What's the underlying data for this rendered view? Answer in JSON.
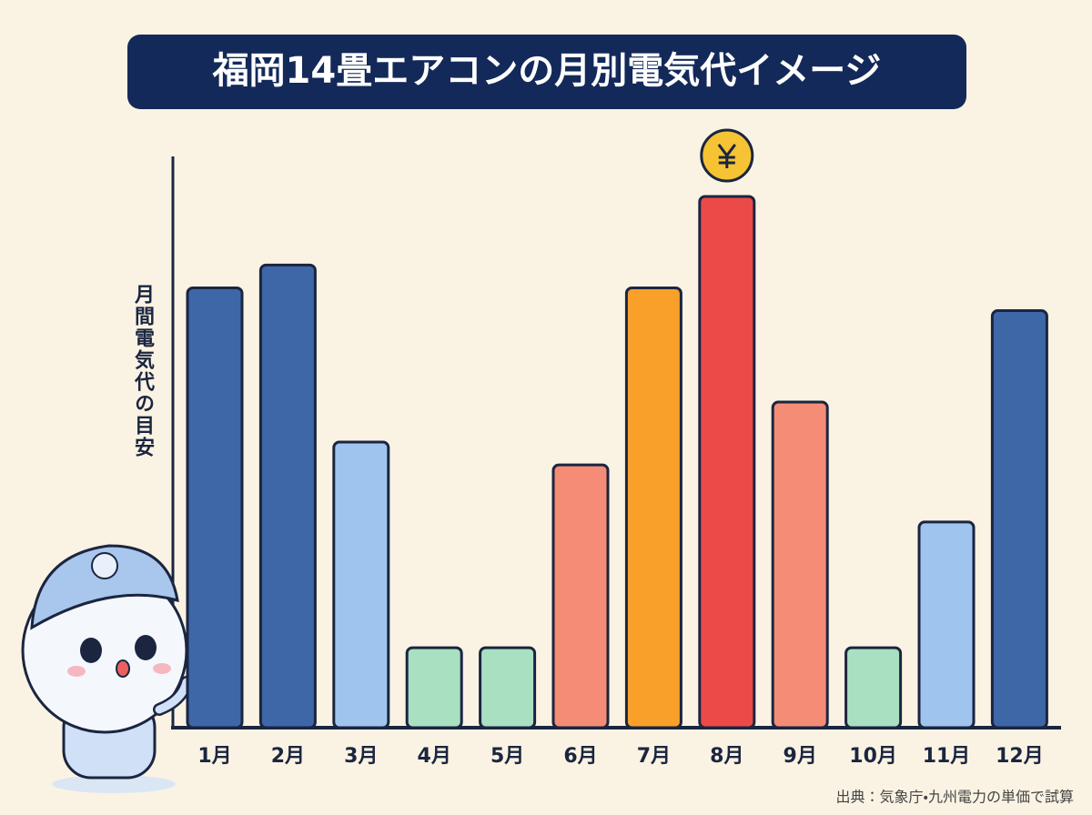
{
  "chart_data": {
    "type": "bar",
    "title": "福岡14畳エアコンの月別電気代イメージ",
    "y_label": "月間電気代の目安",
    "source": "出典：気象庁・九州電力の単価で試算",
    "categories": [
      "1月",
      "2月",
      "3月",
      "4月",
      "5月",
      "6月",
      "7月",
      "8月",
      "9月",
      "10月",
      "11月",
      "12月"
    ],
    "values": [
      77,
      81,
      50,
      14,
      14,
      46,
      77,
      93,
      57,
      14,
      36,
      73
    ],
    "colors": [
      "#3e67a8",
      "#3e67a8",
      "#9fc5ee",
      "#a9e0c2",
      "#a9e0c2",
      "#f58c76",
      "#f8a02a",
      "#eb4a48",
      "#f58c76",
      "#a9e0c2",
      "#9fc5ee",
      "#3e67a8"
    ],
    "ylim": [
      0,
      100
    ]
  }
}
